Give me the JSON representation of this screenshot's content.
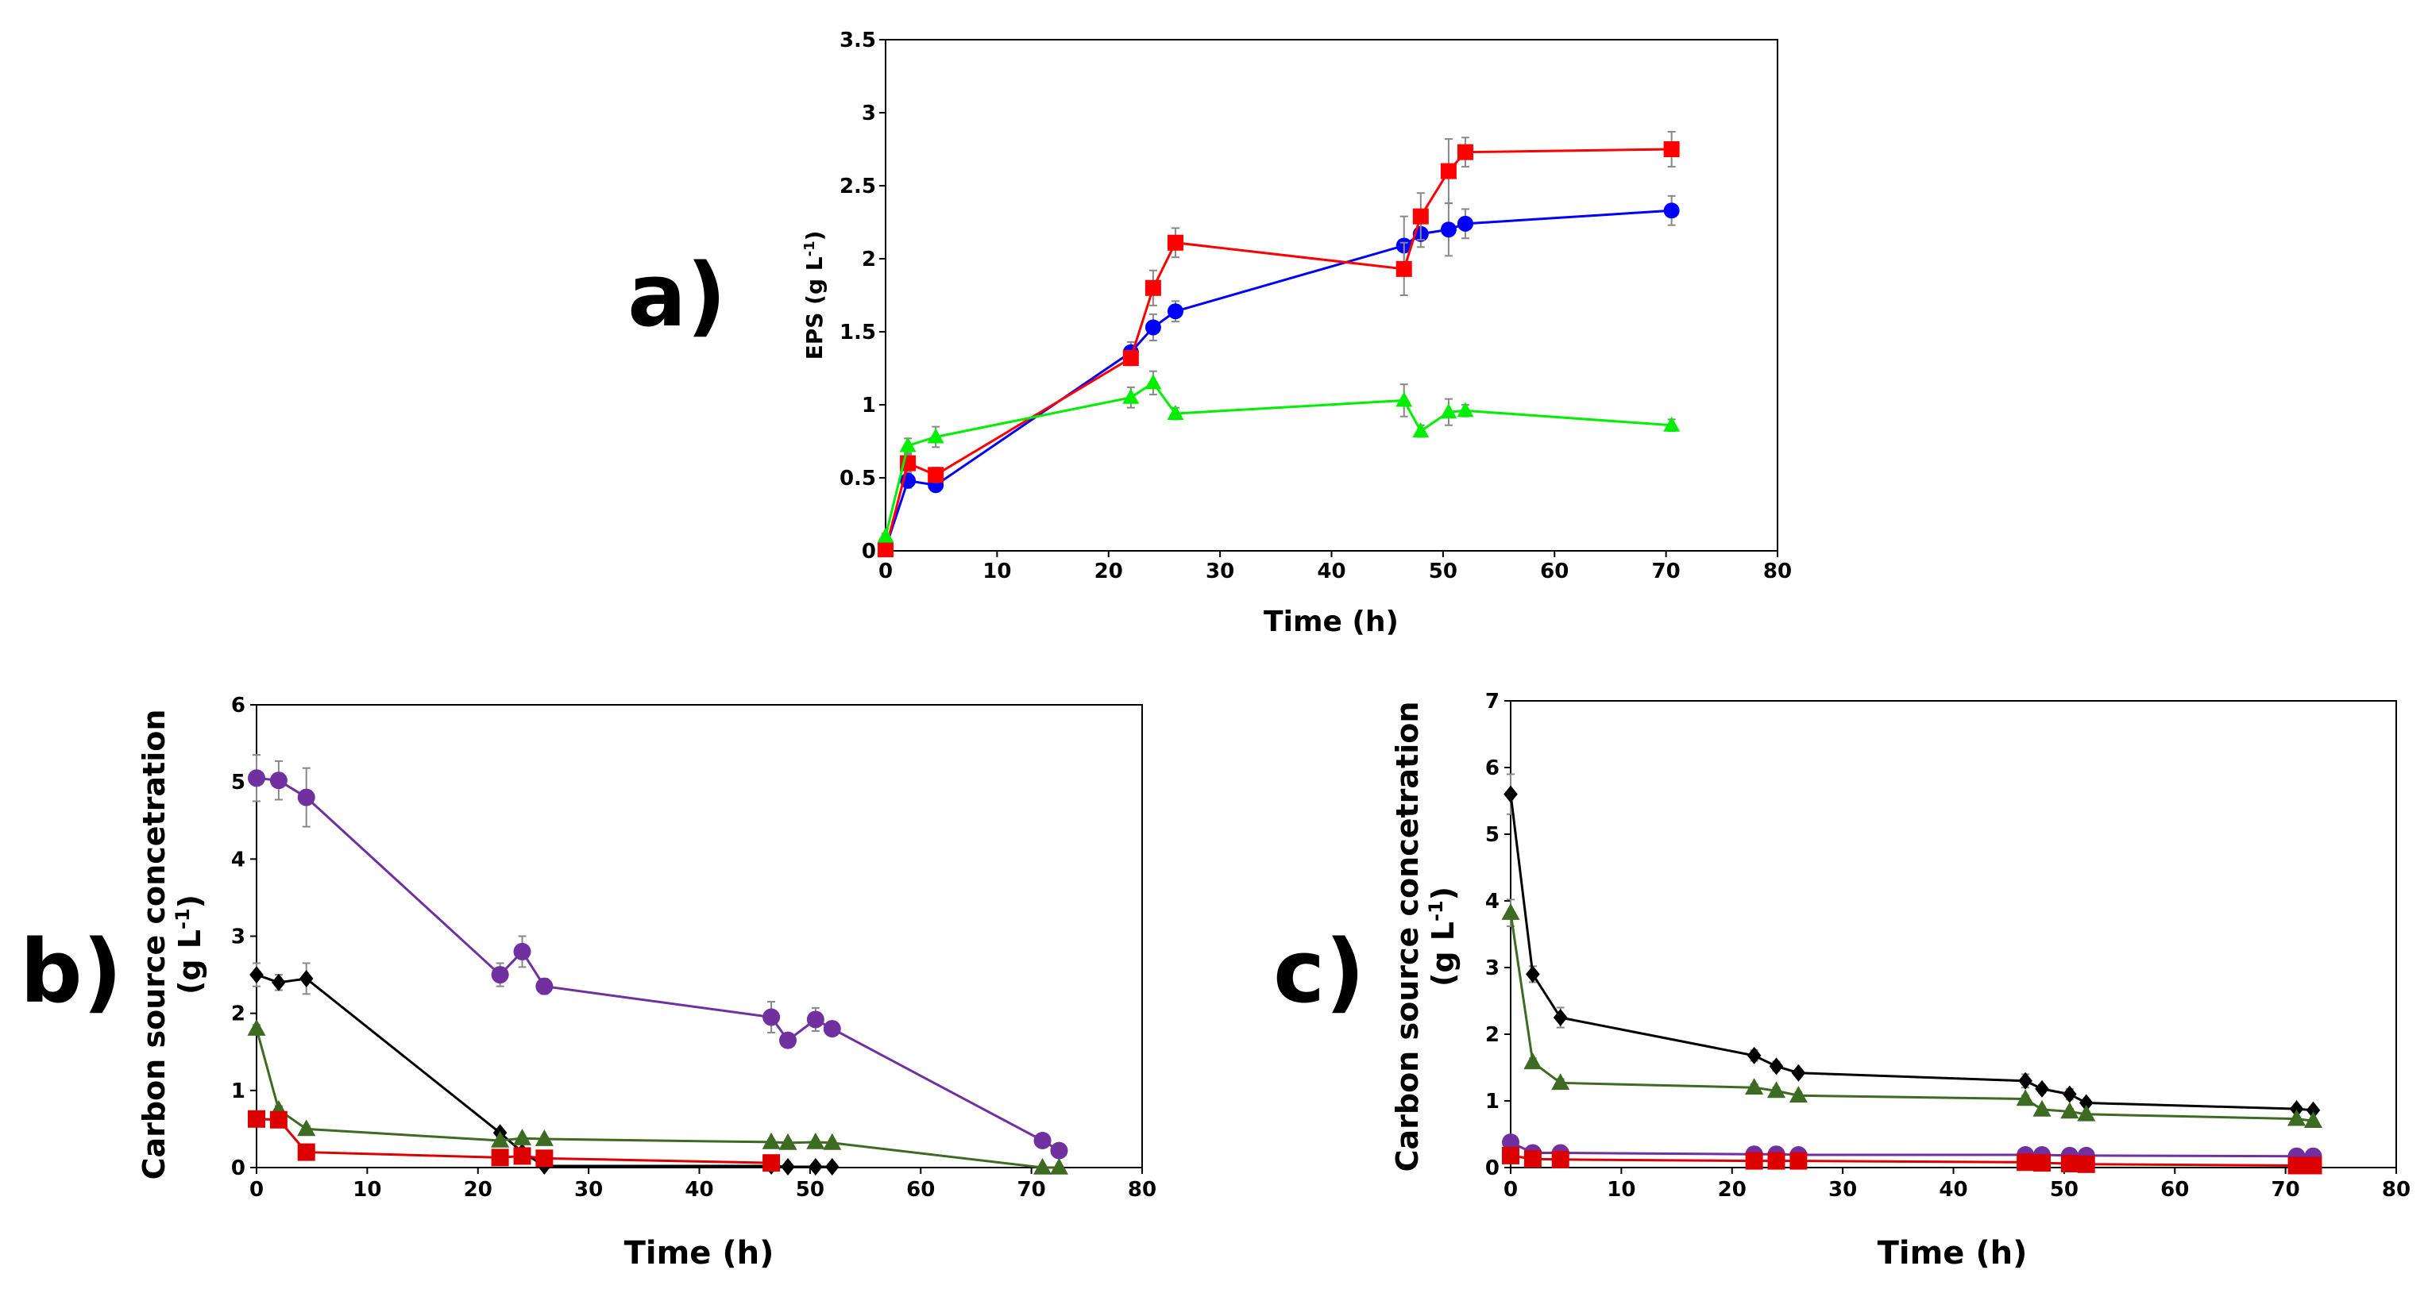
{
  "chart_data": [
    {
      "panel": "a)",
      "type": "line",
      "xlabel": "Time (h)",
      "ylabel": "EPS (g L-1)",
      "ylabel_main": "EPS (g L",
      "ylabel_sup": "-1",
      "ylabel_end": ")",
      "xlim": [
        0,
        80
      ],
      "ylim": [
        0,
        3.5
      ],
      "xticks": [
        0,
        10,
        20,
        30,
        40,
        50,
        60,
        70,
        80
      ],
      "yticks": [
        0,
        0.5,
        1,
        1.5,
        2,
        2.5,
        3,
        3.5
      ],
      "xtick_labels": [
        "0",
        "10",
        "20",
        "30",
        "40",
        "50",
        "60",
        "70",
        "80"
      ],
      "ytick_labels": [
        "0",
        "0.5",
        "1",
        "1.5",
        "2",
        "2.5",
        "3",
        "3.5"
      ],
      "series": [
        {
          "color": "#0000ff",
          "marker": "circle",
          "x": [
            0,
            2,
            4.5,
            22,
            24,
            26,
            46.5,
            48,
            50.5,
            52,
            70.5
          ],
          "y": [
            0.02,
            0.48,
            0.45,
            1.36,
            1.53,
            1.64,
            2.09,
            2.17,
            2.2,
            2.24,
            2.33
          ],
          "err": [
            0.01,
            0.05,
            0.04,
            0.07,
            0.09,
            0.07,
            0.2,
            0.09,
            0.18,
            0.1,
            0.1
          ]
        },
        {
          "color": "#ff0000",
          "marker": "square",
          "x": [
            0,
            2,
            4.5,
            22,
            24,
            26,
            46.5,
            48,
            50.5,
            52,
            70.5
          ],
          "y": [
            0.01,
            0.6,
            0.52,
            1.32,
            1.8,
            2.11,
            1.93,
            2.29,
            2.6,
            2.73,
            2.75
          ],
          "err": [
            0.01,
            0.06,
            0.05,
            0.05,
            0.12,
            0.1,
            0.18,
            0.16,
            0.22,
            0.1,
            0.12
          ]
        },
        {
          "color": "#00ee00",
          "marker": "triangle",
          "x": [
            0,
            2,
            4.5,
            22,
            24,
            26,
            46.5,
            48,
            50.5,
            52,
            70.5
          ],
          "y": [
            0.1,
            0.72,
            0.78,
            1.05,
            1.15,
            0.94,
            1.03,
            0.82,
            0.95,
            0.96,
            0.86
          ],
          "err": [
            0.02,
            0.05,
            0.07,
            0.07,
            0.08,
            0.04,
            0.11,
            0.04,
            0.09,
            0.04,
            0.04
          ]
        }
      ]
    },
    {
      "panel": "b)",
      "type": "line",
      "xlabel": "Time (h)",
      "ylabel": "Carbon source concetration (g L-1)",
      "ylabel_line1": "Carbon source concetration",
      "ylabel_main": "(g L",
      "ylabel_sup": "-1",
      "ylabel_end": ")",
      "xlim": [
        0,
        80
      ],
      "ylim": [
        0,
        6
      ],
      "xticks": [
        0,
        10,
        20,
        30,
        40,
        50,
        60,
        70,
        80
      ],
      "yticks": [
        0,
        1,
        2,
        3,
        4,
        5,
        6
      ],
      "xtick_labels": [
        "0",
        "10",
        "20",
        "30",
        "40",
        "50",
        "60",
        "70",
        "80"
      ],
      "ytick_labels": [
        "0",
        "1",
        "2",
        "3",
        "4",
        "5",
        "6"
      ],
      "series": [
        {
          "color": "#7030a0",
          "marker": "circle",
          "x": [
            0,
            2,
            4.5,
            22,
            24,
            26,
            46.5,
            48,
            50.5,
            52,
            71,
            72.5
          ],
          "y": [
            5.05,
            5.02,
            4.8,
            2.5,
            2.8,
            2.35,
            1.95,
            1.65,
            1.92,
            1.8,
            0.35,
            0.22
          ],
          "err": [
            0.3,
            0.25,
            0.38,
            0.15,
            0.2,
            0.1,
            0.2,
            0.08,
            0.15,
            0.08,
            0.05,
            0.04
          ]
        },
        {
          "color": "#000000",
          "marker": "diamond",
          "x": [
            0,
            2,
            4.5,
            22,
            24,
            26,
            46.5,
            48,
            50.5,
            52
          ],
          "y": [
            2.5,
            2.4,
            2.45,
            0.45,
            0.2,
            0.02,
            0.02,
            0.01,
            0.01,
            0.01
          ],
          "err": [
            0.15,
            0.1,
            0.2,
            0.05,
            0.04,
            0.01,
            0.01,
            0.01,
            0.01,
            0.01
          ]
        },
        {
          "color": "#3d6b22",
          "marker": "triangle",
          "x": [
            0,
            2,
            4.5,
            22,
            24,
            26,
            46.5,
            48,
            50.5,
            52,
            71,
            72.5
          ],
          "y": [
            1.8,
            0.75,
            0.5,
            0.35,
            0.38,
            0.37,
            0.33,
            0.32,
            0.33,
            0.32,
            0.0,
            0.0
          ],
          "err": [
            0.05,
            0.05,
            0.04,
            0.03,
            0.03,
            0.03,
            0.03,
            0.03,
            0.03,
            0.03,
            0.01,
            0.01
          ]
        },
        {
          "color": "#dd0000",
          "marker": "square",
          "x": [
            0,
            2,
            4.5,
            22,
            24,
            26,
            46.5
          ],
          "y": [
            0.63,
            0.62,
            0.2,
            0.13,
            0.15,
            0.12,
            0.06
          ],
          "err": [
            0.04,
            0.04,
            0.02,
            0.02,
            0.02,
            0.02,
            0.01
          ]
        }
      ]
    },
    {
      "panel": "c)",
      "type": "line",
      "xlabel": "Time (h)",
      "ylabel": "Carbon source concetration (g L-1)",
      "ylabel_line1": "Carbon source concetration",
      "ylabel_main": "(g L",
      "ylabel_sup": "-1",
      "ylabel_end": ")",
      "xlim": [
        0,
        80
      ],
      "ylim": [
        0,
        7
      ],
      "xticks": [
        0,
        10,
        20,
        30,
        40,
        50,
        60,
        70,
        80
      ],
      "yticks": [
        0,
        1,
        2,
        3,
        4,
        5,
        6,
        7
      ],
      "xtick_labels": [
        "0",
        "10",
        "20",
        "30",
        "40",
        "50",
        "60",
        "70",
        "80"
      ],
      "ytick_labels": [
        "0",
        "1",
        "2",
        "3",
        "4",
        "5",
        "6",
        "7"
      ],
      "series": [
        {
          "color": "#000000",
          "marker": "diamond",
          "x": [
            0,
            2,
            4.5,
            22,
            24,
            26,
            46.5,
            48,
            50.5,
            52,
            71,
            72.5
          ],
          "y": [
            5.6,
            2.9,
            2.25,
            1.68,
            1.52,
            1.42,
            1.3,
            1.18,
            1.1,
            0.97,
            0.88,
            0.86
          ],
          "err": [
            0.3,
            0.12,
            0.15,
            0.08,
            0.07,
            0.05,
            0.1,
            0.06,
            0.08,
            0.05,
            0.04,
            0.04
          ]
        },
        {
          "color": "#3d6b22",
          "marker": "triangle",
          "x": [
            0,
            2,
            4.5,
            22,
            24,
            26,
            46.5,
            48,
            50.5,
            52,
            71,
            72.5
          ],
          "y": [
            3.82,
            1.58,
            1.27,
            1.2,
            1.15,
            1.08,
            1.03,
            0.87,
            0.84,
            0.8,
            0.73,
            0.7
          ],
          "err": [
            0.2,
            0.06,
            0.06,
            0.05,
            0.05,
            0.05,
            0.05,
            0.04,
            0.04,
            0.04,
            0.03,
            0.03
          ]
        },
        {
          "color": "#7030a0",
          "marker": "circle",
          "x": [
            0,
            2,
            4.5,
            22,
            24,
            26,
            46.5,
            48,
            50.5,
            52,
            71,
            72.5
          ],
          "y": [
            0.38,
            0.22,
            0.22,
            0.2,
            0.2,
            0.19,
            0.19,
            0.19,
            0.18,
            0.18,
            0.17,
            0.17
          ],
          "err": [
            0.02,
            0.02,
            0.02,
            0.02,
            0.02,
            0.02,
            0.02,
            0.02,
            0.02,
            0.02,
            0.02,
            0.02
          ]
        },
        {
          "color": "#dd0000",
          "marker": "square",
          "x": [
            0,
            2,
            4.5,
            22,
            24,
            26,
            46.5,
            48,
            50.5,
            52,
            71,
            72.5
          ],
          "y": [
            0.18,
            0.13,
            0.12,
            0.1,
            0.1,
            0.1,
            0.08,
            0.07,
            0.06,
            0.05,
            0.03,
            0.03
          ],
          "err": [
            0.02,
            0.02,
            0.02,
            0.02,
            0.02,
            0.02,
            0.02,
            0.02,
            0.02,
            0.02,
            0.01,
            0.01
          ]
        }
      ]
    }
  ]
}
